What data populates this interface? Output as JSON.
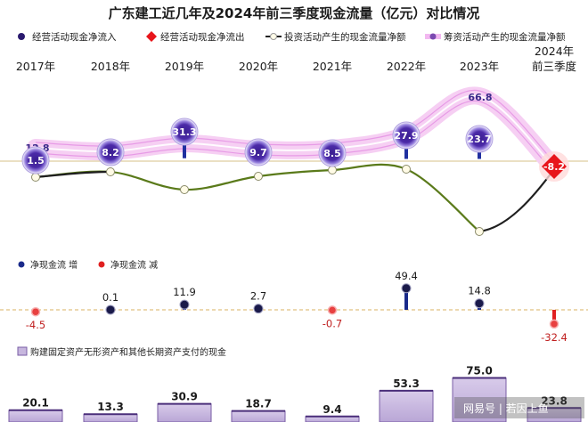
{
  "chart_data": {
    "type": "line",
    "title": "广东建工近几年及2024年前三季度现金流量（亿元）对比情况",
    "categories": [
      "2017年",
      "2018年",
      "2019年",
      "2020年",
      "2021年",
      "2022年",
      "2023年",
      "2024年前三季度"
    ],
    "category_lines": [
      [
        "2017年"
      ],
      [
        "2018年"
      ],
      [
        "2019年"
      ],
      [
        "2020年"
      ],
      [
        "2021年"
      ],
      [
        "2022年"
      ],
      [
        "2023年"
      ],
      [
        "2024年",
        "前三季度"
      ]
    ],
    "legend": [
      "经营活动现金净流入",
      "经营活动现金净流出",
      "投资活动产生的现金流量净额",
      "筹资活动产生的现金流量净额"
    ],
    "operating_cash_flow": [
      1.5,
      8.2,
      31.3,
      9.7,
      8.5,
      27.9,
      23.7,
      -8.2
    ],
    "operating_labels": [
      "1.5",
      "8.2",
      "31.3",
      "9.7",
      "8.5",
      "27.9",
      "23.7",
      "-8.2"
    ],
    "financing_first_label": "12.8",
    "financing_peak_label": "66.8",
    "investing_cash_flow_trend": "negative, near flat 2017-2021, drops sharply in 2023",
    "net_cash_flow": {
      "legend_increase": "净现金流  增",
      "legend_decrease": "净现金流  减",
      "values": [
        -4.5,
        0.1,
        11.9,
        2.7,
        -0.7,
        49.4,
        14.8,
        -32.4
      ],
      "labels": [
        "-4.5",
        "0.1",
        "11.9",
        "2.7",
        "-0.7",
        "49.4",
        "14.8",
        "-32.4"
      ]
    },
    "capex": {
      "legend": "购建固定资产无形资产和其他长期资产支付的现金",
      "values": [
        20.1,
        13.3,
        30.9,
        18.7,
        9.4,
        53.3,
        75.0,
        23.8
      ],
      "labels": [
        "20.1",
        "13.3",
        "30.9",
        "18.7",
        "9.4",
        "53.3",
        "75.0",
        "23.8"
      ]
    },
    "colors": {
      "inflow": "#2a1a6e",
      "outflow": "#e8151b",
      "investing": "#5a7a1a",
      "financing": "#f2b8f0",
      "bar_fill": "#c7b7de",
      "bar_edge": "#7a5ea6",
      "net_up": "#1a2a8a",
      "net_down": "#e02020"
    }
  },
  "watermark": "网易号 | 若因上鱼"
}
